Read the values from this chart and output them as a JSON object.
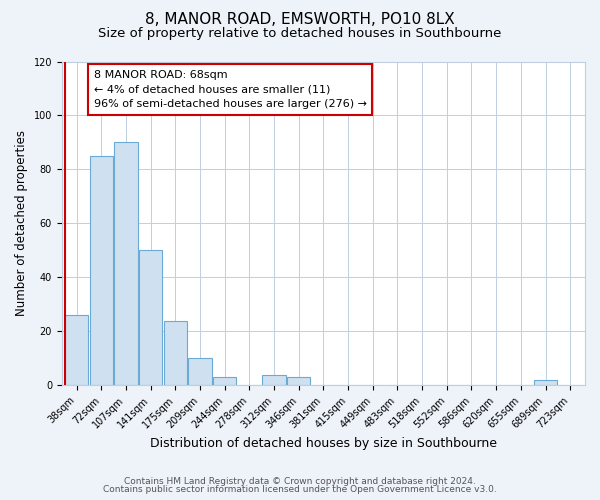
{
  "title": "8, MANOR ROAD, EMSWORTH, PO10 8LX",
  "subtitle": "Size of property relative to detached houses in Southbourne",
  "xlabel": "Distribution of detached houses by size in Southbourne",
  "ylabel": "Number of detached properties",
  "bar_labels": [
    "38sqm",
    "72sqm",
    "107sqm",
    "141sqm",
    "175sqm",
    "209sqm",
    "244sqm",
    "278sqm",
    "312sqm",
    "346sqm",
    "381sqm",
    "415sqm",
    "449sqm",
    "483sqm",
    "518sqm",
    "552sqm",
    "586sqm",
    "620sqm",
    "655sqm",
    "689sqm",
    "723sqm"
  ],
  "bar_heights": [
    26,
    85,
    90,
    50,
    24,
    10,
    3,
    0,
    4,
    3,
    0,
    0,
    0,
    0,
    0,
    0,
    0,
    0,
    0,
    2,
    0
  ],
  "bar_color": "#cfe0f0",
  "bar_edge_color": "#6aaad4",
  "marker_line_color": "#cc0000",
  "annotation_text_line1": "8 MANOR ROAD: 68sqm",
  "annotation_text_line2": "← 4% of detached houses are smaller (11)",
  "annotation_text_line3": "96% of semi-detached houses are larger (276) →",
  "ylim": [
    0,
    120
  ],
  "yticks": [
    0,
    20,
    40,
    60,
    80,
    100,
    120
  ],
  "footer_line1": "Contains HM Land Registry data © Crown copyright and database right 2024.",
  "footer_line2": "Contains public sector information licensed under the Open Government Licence v3.0.",
  "background_color": "#eef2f9",
  "plot_background_color": "#ffffff",
  "grid_color": "#c0cfe0",
  "title_fontsize": 11,
  "subtitle_fontsize": 9.5,
  "xlabel_fontsize": 9,
  "ylabel_fontsize": 8.5,
  "tick_fontsize": 7,
  "footer_fontsize": 6.5,
  "annotation_fontsize": 8
}
